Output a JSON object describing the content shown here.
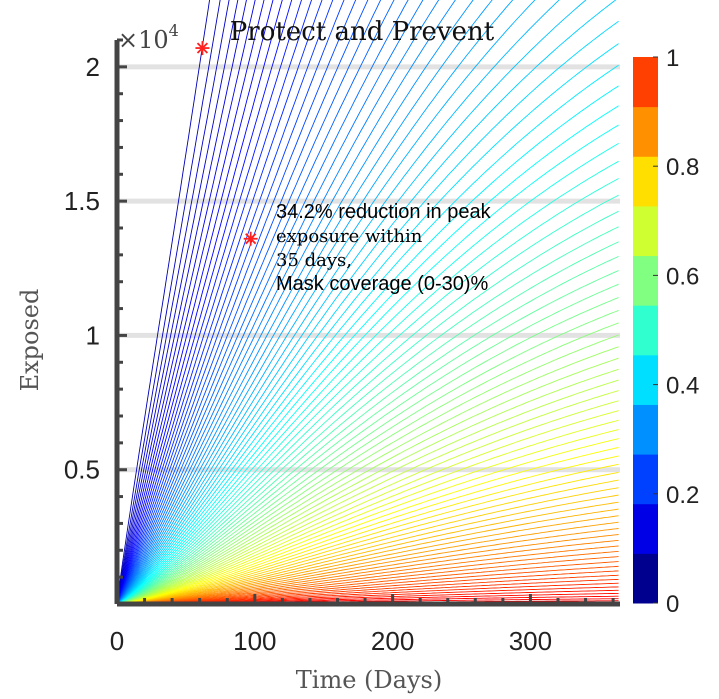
{
  "chart_data": {
    "type": "line",
    "title": "Protect and Prevent",
    "xlabel": "Time (Days)",
    "ylabel": "Exposed",
    "y_exponent_label": "×10",
    "y_exponent_power": "4",
    "xlim": [
      0,
      365
    ],
    "ylim": [
      0,
      21000
    ],
    "x_ticks": [
      0,
      100,
      200,
      300
    ],
    "x_tick_labels": [
      "0",
      "100",
      "200",
      "300"
    ],
    "y_ticks": [
      5000,
      10000,
      15000,
      20000
    ],
    "y_tick_labels": [
      "0.5",
      "1",
      "1.5",
      "2"
    ],
    "grid": "horizontal",
    "colormap": "jet",
    "colorbar": {
      "range": [
        0,
        1
      ],
      "ticks": [
        0,
        0.2,
        0.4,
        0.6,
        0.8,
        1
      ],
      "tick_labels": [
        "0",
        "0.2",
        "0.4",
        "0.6",
        "0.8",
        "1"
      ],
      "levels": 11,
      "colors": [
        "#00008f",
        "#0000e6",
        "#0040ff",
        "#0090ff",
        "#00dfff",
        "#30ffcf",
        "#80ff80",
        "#cfff30",
        "#ffdf00",
        "#ff9000",
        "#ff4000"
      ]
    },
    "series_family": {
      "count": 90,
      "parameter_range": [
        0,
        1
      ],
      "baseline_peak": {
        "day": 62,
        "value": 20700
      },
      "late_tail_value_at_day_365": 1800
    },
    "markers": [
      {
        "label": "peak",
        "x": 62,
        "y": 20700,
        "color": "#ff2020"
      },
      {
        "label": "reduced peak",
        "x": 97,
        "y": 13600,
        "color": "#ff2020"
      }
    ],
    "annotation": {
      "line1": "34.2% reduction in peak",
      "line2": "exposure within",
      "line3": "35 days,",
      "line4": "Mask coverage (0-30)%"
    }
  }
}
